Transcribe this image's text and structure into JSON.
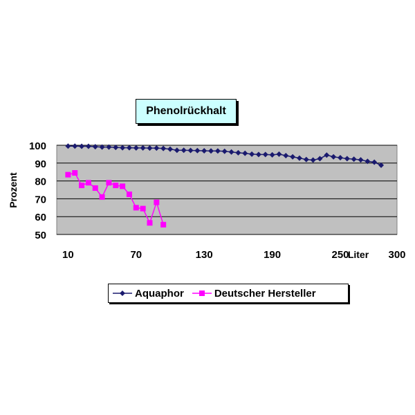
{
  "chart_data": {
    "type": "line",
    "title": "Phenolrückhalt",
    "ylabel": "Prozent",
    "xlabel": "Liter",
    "ylim": [
      50,
      100
    ],
    "xlim": [
      0,
      300
    ],
    "y_ticks": [
      "100",
      "90",
      "80",
      "70",
      "60",
      "50"
    ],
    "x_ticks": [
      "10",
      "70",
      "130",
      "190",
      "250",
      "300"
    ],
    "grid": true,
    "legend_position": "bottom",
    "series": [
      {
        "name": "Aquaphor",
        "color": "#1a1a6e",
        "marker": "diamond",
        "x": [
          10,
          16,
          22,
          28,
          34,
          40,
          46,
          52,
          58,
          64,
          70,
          76,
          82,
          88,
          94,
          100,
          106,
          112,
          118,
          124,
          130,
          136,
          142,
          148,
          154,
          160,
          166,
          172,
          178,
          184,
          190,
          196,
          202,
          208,
          214,
          220,
          226,
          232,
          238,
          244,
          250,
          256,
          262,
          268,
          274,
          280,
          286
        ],
        "values": [
          99.5,
          99.5,
          99.4,
          99.4,
          99.2,
          99.0,
          99.0,
          98.8,
          98.6,
          98.6,
          98.5,
          98.5,
          98.4,
          98.4,
          98.2,
          97.8,
          97.2,
          97.2,
          97.1,
          97.0,
          96.9,
          96.8,
          96.8,
          96.6,
          96.2,
          95.8,
          95.5,
          95.0,
          94.8,
          94.8,
          94.6,
          95.0,
          94.2,
          93.5,
          92.8,
          92.0,
          91.7,
          92.5,
          94.5,
          93.5,
          93.0,
          92.5,
          92.2,
          91.8,
          91.0,
          90.5,
          88.8
        ]
      },
      {
        "name": "Deutscher Hersteller",
        "color": "#ff00ff",
        "marker": "square",
        "x": [
          10,
          16,
          22,
          28,
          34,
          40,
          46,
          52,
          58,
          64,
          70,
          76,
          82,
          88,
          94
        ],
        "values": [
          83.5,
          84.5,
          77.5,
          79.0,
          76.0,
          71.0,
          79.0,
          77.5,
          77.0,
          72.5,
          65.0,
          64.5,
          56.5,
          68.0,
          55.5
        ]
      }
    ]
  }
}
